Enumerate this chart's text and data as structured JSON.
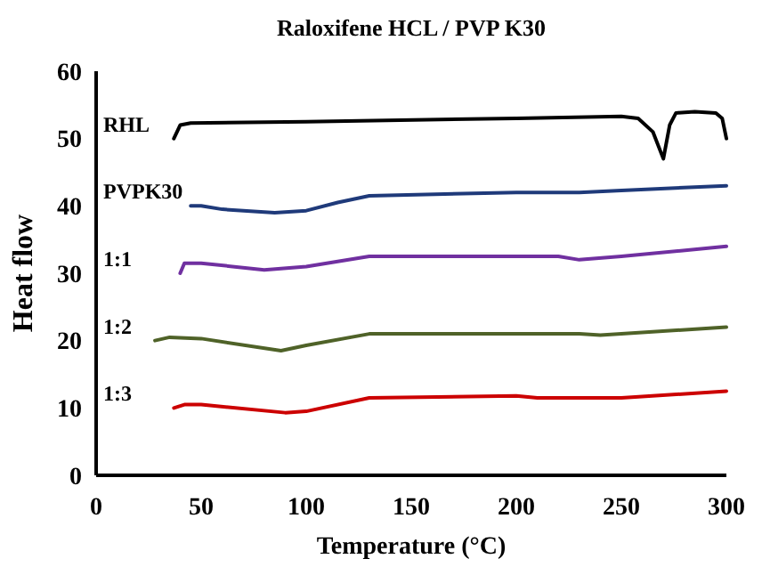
{
  "chart_data": {
    "type": "line",
    "title": "Raloxifene HCL / PVP K30",
    "xlabel": "Temperature (°C)",
    "ylabel": "Heat flow",
    "xlim": [
      0,
      300
    ],
    "xticks": [
      0,
      50,
      100,
      150,
      200,
      250,
      300
    ],
    "ylim": [
      0,
      60
    ],
    "yticks": [
      0,
      10,
      20,
      30,
      40,
      50,
      60
    ],
    "grid": false,
    "marker": "none",
    "line_style": "solid",
    "series": [
      {
        "name": "RHL",
        "color": "#000000",
        "x": [
          37,
          40,
          45,
          100,
          200,
          250,
          258,
          265,
          270,
          273,
          276,
          285,
          295,
          298,
          300
        ],
        "values": [
          50,
          52,
          52.3,
          52.5,
          53,
          53.3,
          53,
          51,
          47,
          52,
          53.8,
          54,
          53.8,
          53,
          50
        ]
      },
      {
        "name": "PVPK30",
        "color": "#1f3a7a",
        "x": [
          45,
          50,
          60,
          85,
          100,
          115,
          130,
          200,
          230,
          250,
          300
        ],
        "values": [
          40,
          40,
          39.5,
          39,
          39.3,
          40.5,
          41.5,
          42,
          42,
          42.3,
          43
        ]
      },
      {
        "name": "1:1",
        "color": "#7030a0",
        "x": [
          40,
          42,
          50,
          80,
          100,
          130,
          220,
          230,
          250,
          300
        ],
        "values": [
          30,
          31.5,
          31.5,
          30.5,
          31,
          32.5,
          32.5,
          32,
          32.5,
          34
        ]
      },
      {
        "name": "1:2",
        "color": "#4f6228",
        "x": [
          28,
          35,
          50,
          88,
          100,
          130,
          230,
          240,
          250,
          300
        ],
        "values": [
          20,
          20.5,
          20.3,
          18.5,
          19.3,
          21,
          21,
          20.8,
          21,
          22
        ]
      },
      {
        "name": "1:3",
        "color": "#cc0000",
        "x": [
          37,
          42,
          50,
          90,
          100,
          130,
          200,
          210,
          250,
          300
        ],
        "values": [
          10,
          10.5,
          10.5,
          9.3,
          9.5,
          11.5,
          11.8,
          11.5,
          11.5,
          12.5
        ]
      }
    ]
  }
}
